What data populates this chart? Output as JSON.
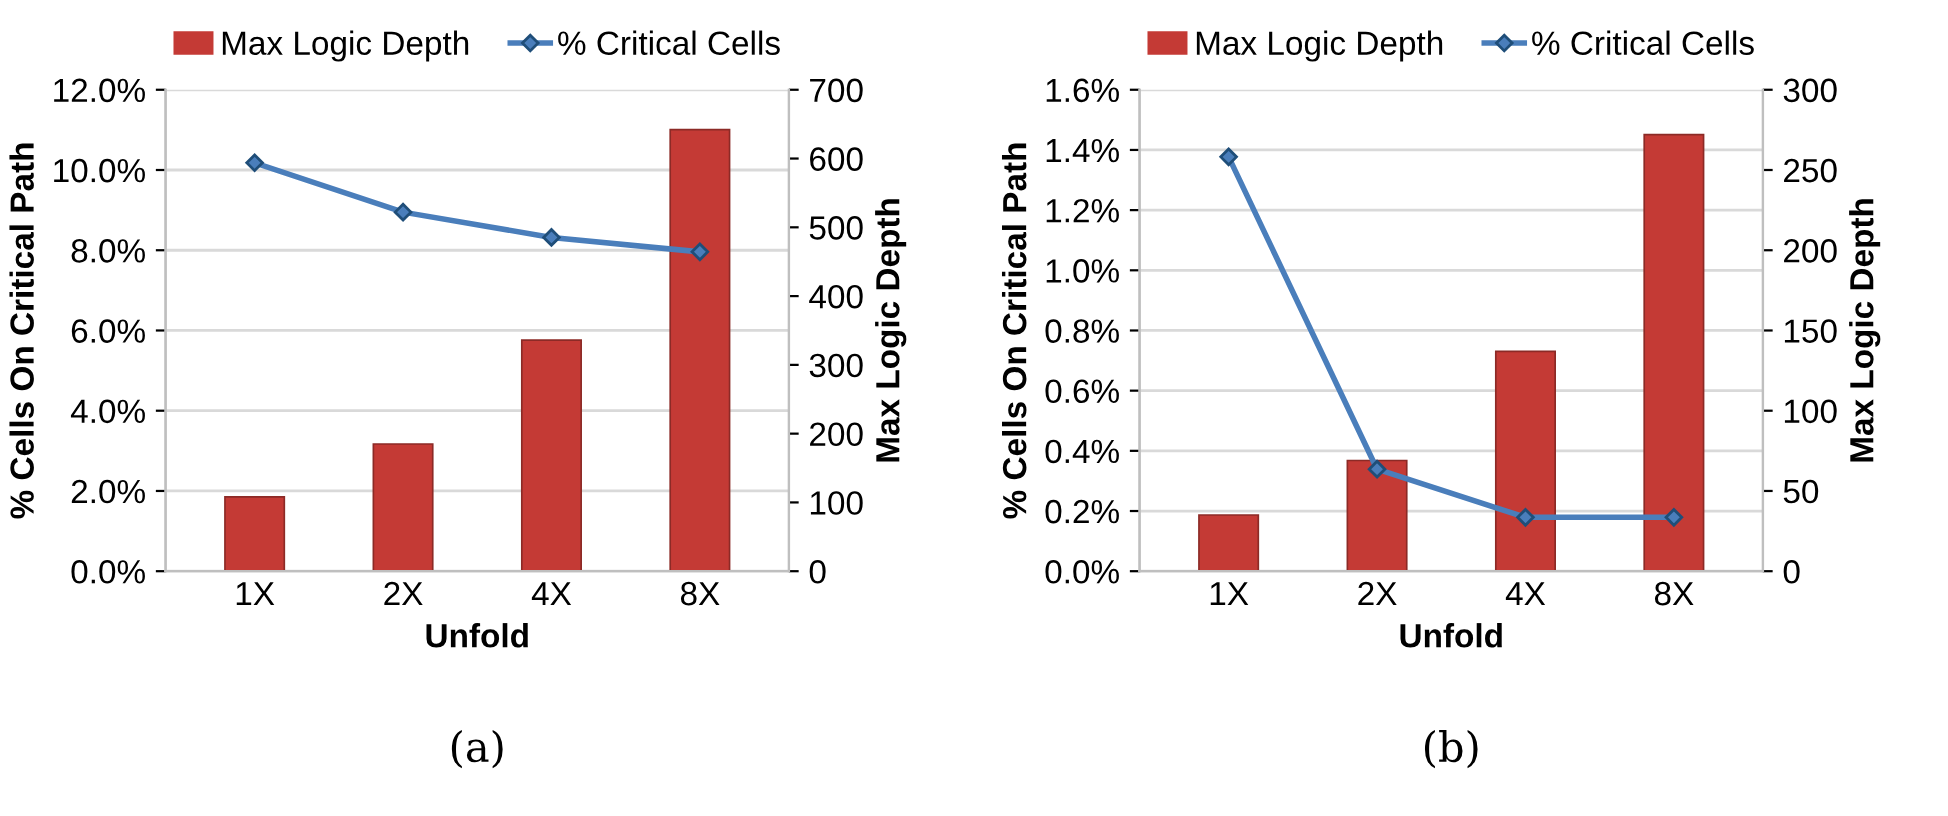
{
  "chart_data": [
    {
      "type": "bar",
      "xlabel": "Unfold",
      "ylabel": "% Cells On Critical Path",
      "y2label": "Max Logic Depth",
      "categories": [
        "1X",
        "2X",
        "4X",
        "8X"
      ],
      "series": [
        {
          "name": "Max Logic Depth",
          "axis": "y2",
          "color": "#c43a35",
          "values": [
            108,
            185,
            336,
            642
          ]
        },
        {
          "name": "% Critical Cells",
          "type": "line",
          "axis": "y",
          "color": "#4a7ebb",
          "marker": "diamond",
          "values": [
            10.18,
            8.95,
            8.32,
            7.96
          ]
        }
      ],
      "ylim": [
        0,
        12
      ],
      "yticks": [
        {
          "value": 0,
          "label": "0.0%"
        },
        {
          "value": 2,
          "label": "2.0%"
        },
        {
          "value": 4,
          "label": "4.0%"
        },
        {
          "value": 6,
          "label": "6.0%"
        },
        {
          "value": 8,
          "label": "8.0%"
        },
        {
          "value": 10,
          "label": "10.0%"
        },
        {
          "value": 12,
          "label": "12.0%"
        }
      ],
      "y2lim": [
        0,
        700
      ],
      "y2ticks": [
        0,
        100,
        200,
        300,
        400,
        500,
        600,
        700
      ],
      "grid": "y",
      "legend": "top",
      "annotations": [
        "(a)"
      ]
    },
    {
      "type": "bar",
      "xlabel": "Unfold",
      "ylabel": "% Cells On Critical Path",
      "y2label": "Max Logic Depth",
      "categories": [
        "1X",
        "2X",
        "4X",
        "8X"
      ],
      "series": [
        {
          "name": "Max Logic Depth",
          "axis": "y2",
          "color": "#c43a35",
          "values": [
            35,
            69,
            137,
            272
          ]
        },
        {
          "name": "% Critical Cells",
          "type": "line",
          "axis": "y",
          "color": "#4a7ebb",
          "marker": "diamond",
          "values": [
            1.377,
            0.339,
            0.179,
            0.179
          ]
        }
      ],
      "ylim": [
        0,
        1.6
      ],
      "yticks": [
        {
          "value": 0,
          "label": "0.0%"
        },
        {
          "value": 0.2,
          "label": "0.2%"
        },
        {
          "value": 0.4,
          "label": "0.4%"
        },
        {
          "value": 0.6,
          "label": "0.6%"
        },
        {
          "value": 0.8,
          "label": "0.8%"
        },
        {
          "value": 1.0,
          "label": "1.0%"
        },
        {
          "value": 1.2,
          "label": "1.2%"
        },
        {
          "value": 1.4,
          "label": "1.4%"
        },
        {
          "value": 1.6,
          "label": "1.6%"
        }
      ],
      "y2lim": [
        0,
        300
      ],
      "y2ticks": [
        0,
        50,
        100,
        150,
        200,
        250,
        300
      ],
      "grid": "y",
      "legend": "top",
      "annotations": [
        "(b)"
      ]
    }
  ]
}
